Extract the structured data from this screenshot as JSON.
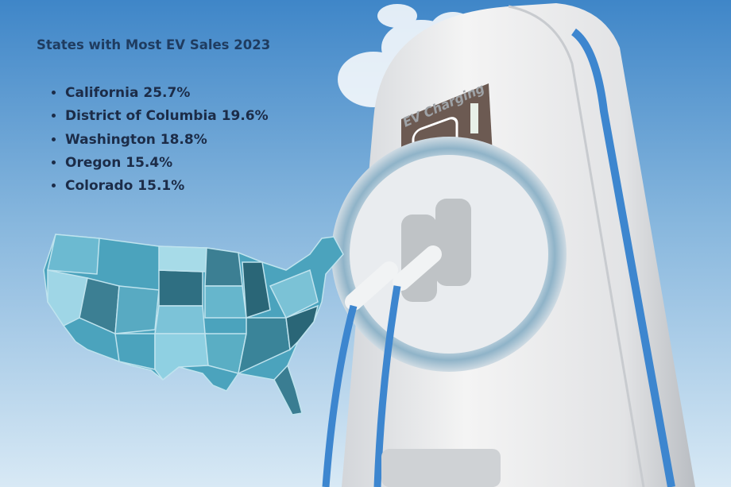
{
  "title": "States with Most EV Sales 2023",
  "items": [
    "California 25.7%",
    "District of Columbia 19.6%",
    "Washington 18.8%",
    "Oregon 15.4%",
    "Colorado 15.1%"
  ],
  "charger_label": "EV Charging"
}
